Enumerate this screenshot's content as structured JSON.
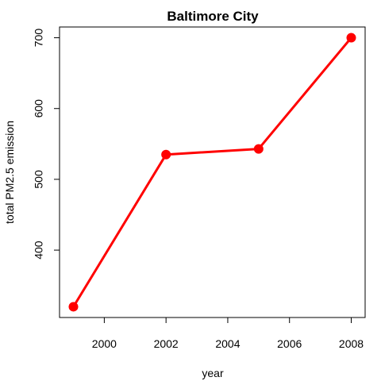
{
  "chart_data": {
    "type": "line",
    "title": "Baltimore City",
    "xlabel": "year",
    "ylabel": "total PM2.5 emission",
    "x": [
      1999,
      2002,
      2005,
      2008
    ],
    "series": [
      {
        "values": [
          320,
          535,
          543,
          700
        ]
      }
    ],
    "xlim": [
      1998.55,
      2008.45
    ],
    "ylim": [
      304.8,
      715.2
    ],
    "xticks": [
      2000,
      2002,
      2004,
      2006,
      2008
    ],
    "yticks": [
      400,
      500,
      600,
      700
    ],
    "xtick_labels": [
      "2000",
      "2002",
      "2004",
      "2006",
      "2008"
    ],
    "ytick_labels": [
      "400",
      "500",
      "600",
      "700"
    ],
    "grid": false,
    "legend": "none",
    "line_color": "#ff0000",
    "marker_color": "#ff0000",
    "axis_color": "#000000"
  }
}
